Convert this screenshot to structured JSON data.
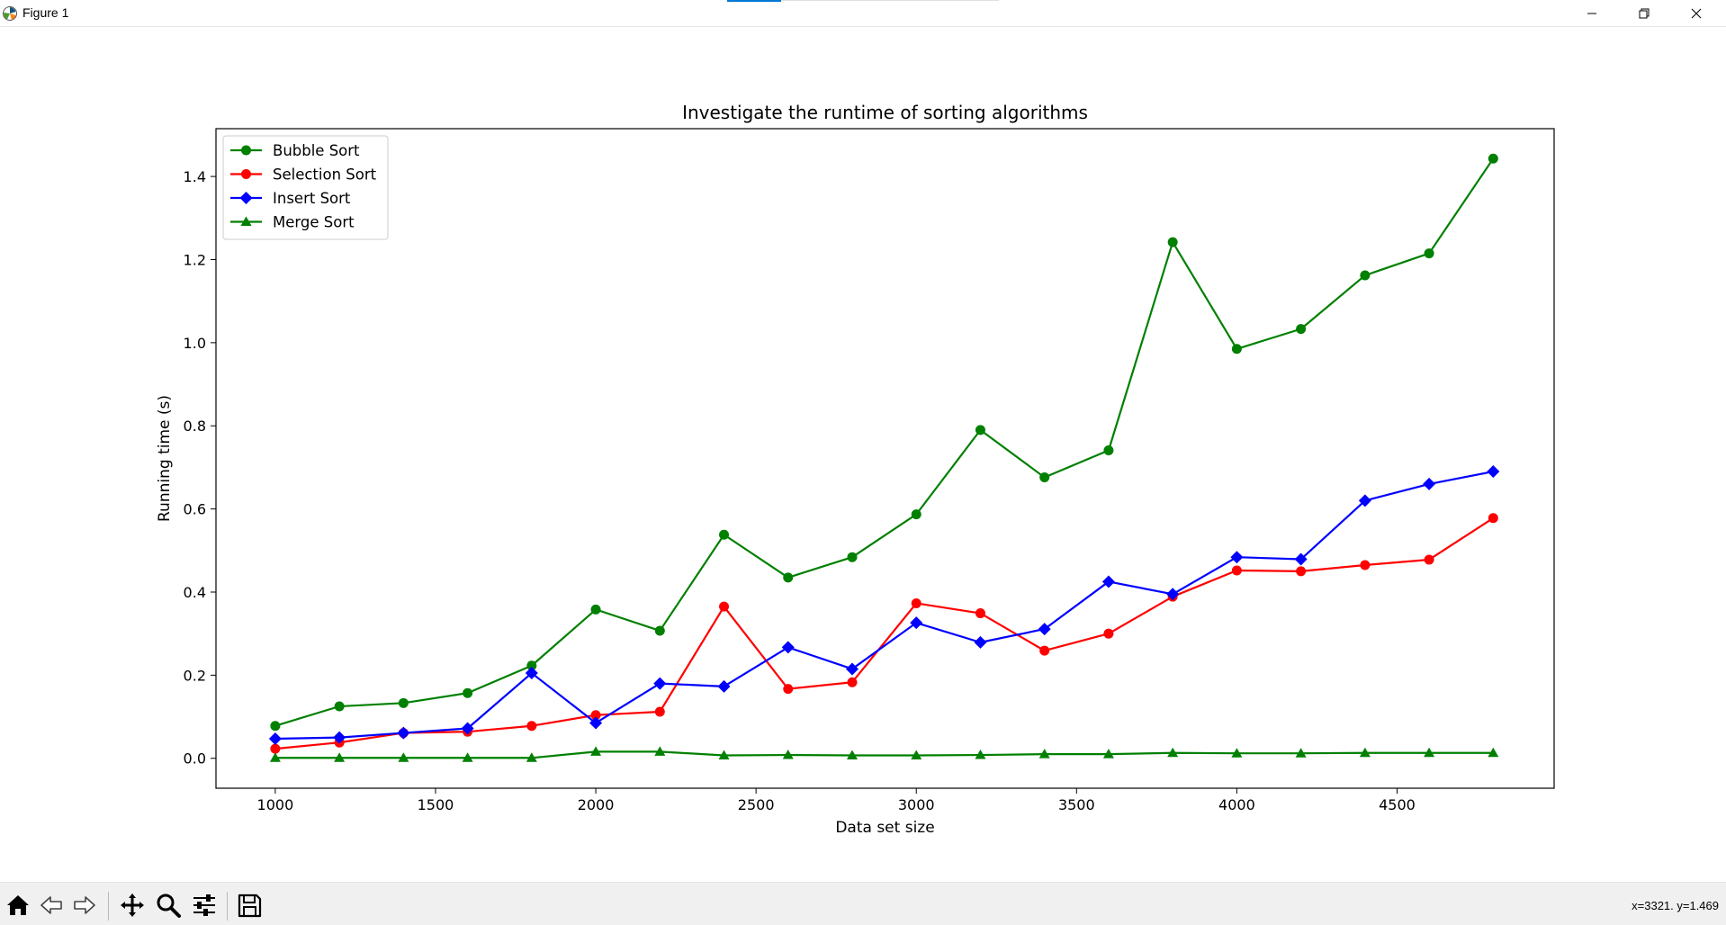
{
  "window": {
    "title": "Figure 1"
  },
  "chart_data": {
    "type": "line",
    "title": "Investigate the runtime of sorting algorithms",
    "xlabel": "Data set size",
    "ylabel": "Running time (s)",
    "x": [
      1000,
      1200,
      1400,
      1600,
      1800,
      2000,
      2200,
      2400,
      2600,
      2800,
      3000,
      3200,
      3400,
      3600,
      3800,
      4000,
      4200,
      4400,
      4600,
      4800
    ],
    "xlim": [
      815,
      4990
    ],
    "ylim": [
      -0.072,
      1.515
    ],
    "xticks": [
      1000,
      1500,
      2000,
      2500,
      3000,
      3500,
      4000,
      4500
    ],
    "yticks": [
      0.0,
      0.2,
      0.4,
      0.6,
      0.8,
      1.0,
      1.2,
      1.4
    ],
    "grid": false,
    "legend_position": "upper-left",
    "series": [
      {
        "name": "Bubble Sort",
        "color": "#008000",
        "marker": "circle",
        "values": [
          0.078,
          0.125,
          0.133,
          0.157,
          0.223,
          0.358,
          0.307,
          0.538,
          0.435,
          0.484,
          0.587,
          0.79,
          0.676,
          0.741,
          1.242,
          0.985,
          1.033,
          1.162,
          1.215,
          1.443
        ]
      },
      {
        "name": "Selection Sort",
        "color": "#ff0000",
        "marker": "circle",
        "values": [
          0.023,
          0.038,
          0.061,
          0.064,
          0.078,
          0.104,
          0.112,
          0.365,
          0.167,
          0.183,
          0.373,
          0.349,
          0.259,
          0.3,
          0.389,
          0.452,
          0.45,
          0.465,
          0.478,
          0.578
        ]
      },
      {
        "name": "Insert Sort",
        "color": "#0000ff",
        "marker": "diamond",
        "values": [
          0.047,
          0.05,
          0.061,
          0.072,
          0.205,
          0.085,
          0.18,
          0.173,
          0.267,
          0.215,
          0.326,
          0.279,
          0.311,
          0.425,
          0.395,
          0.484,
          0.479,
          0.62,
          0.66,
          0.69
        ]
      },
      {
        "name": "Merge Sort",
        "color": "#008000",
        "marker": "triangle",
        "values": [
          0.001,
          0.001,
          0.001,
          0.001,
          0.001,
          0.016,
          0.016,
          0.007,
          0.008,
          0.007,
          0.007,
          0.008,
          0.01,
          0.01,
          0.013,
          0.012,
          0.012,
          0.013,
          0.013,
          0.013
        ]
      }
    ]
  },
  "toolbar": {
    "tools": [
      {
        "name": "home",
        "icon": "home-icon"
      },
      {
        "name": "back",
        "icon": "back-arrow-icon"
      },
      {
        "name": "forward",
        "icon": "forward-arrow-icon"
      },
      {
        "name": "pan",
        "icon": "pan-icon"
      },
      {
        "name": "zoom",
        "icon": "zoom-icon"
      },
      {
        "name": "subplots",
        "icon": "subplots-icon"
      },
      {
        "name": "save",
        "icon": "save-icon"
      }
    ],
    "coordinates": "x=3321. y=1.469"
  }
}
